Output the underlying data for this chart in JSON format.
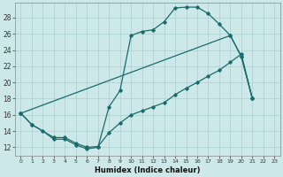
{
  "xlabel": "Humidex (Indice chaleur)",
  "bg_color": "#cce8e8",
  "line_color": "#1a6b6b",
  "grid_color": "#aacfcf",
  "xlim": [
    -0.5,
    23.5
  ],
  "ylim": [
    11.0,
    29.8
  ],
  "yticks": [
    12,
    14,
    16,
    18,
    20,
    22,
    24,
    26,
    28
  ],
  "xticks": [
    0,
    1,
    2,
    3,
    4,
    5,
    6,
    7,
    8,
    9,
    10,
    11,
    12,
    13,
    14,
    15,
    16,
    17,
    18,
    19,
    20,
    21,
    22,
    23
  ],
  "line1_x": [
    0,
    1,
    2,
    3,
    4,
    5,
    6,
    7,
    8,
    9,
    10,
    11,
    12,
    13,
    14,
    15,
    16,
    17,
    18,
    19,
    20,
    21
  ],
  "line1_y": [
    16.2,
    14.8,
    14.0,
    13.0,
    13.0,
    12.3,
    11.8,
    12.0,
    17.0,
    19.0,
    25.8,
    26.3,
    26.5,
    27.5,
    29.2,
    29.3,
    29.3,
    28.5,
    27.2,
    25.8,
    23.2,
    18.0
  ],
  "line2_x": [
    0,
    19,
    20,
    21
  ],
  "line2_y": [
    16.2,
    25.8,
    23.2,
    18.0
  ],
  "line3_x": [
    0,
    1,
    3,
    4,
    5,
    6,
    7,
    8,
    9,
    10,
    11,
    12,
    13,
    14,
    15,
    16,
    17,
    18,
    19,
    20,
    21
  ],
  "line3_y": [
    16.2,
    14.8,
    13.2,
    13.2,
    12.5,
    12.0,
    12.1,
    13.8,
    15.0,
    16.0,
    16.5,
    17.0,
    17.5,
    18.5,
    19.3,
    20.0,
    20.8,
    21.5,
    22.5,
    23.5,
    18.0
  ],
  "figsize": [
    3.2,
    2.0
  ],
  "dpi": 100
}
